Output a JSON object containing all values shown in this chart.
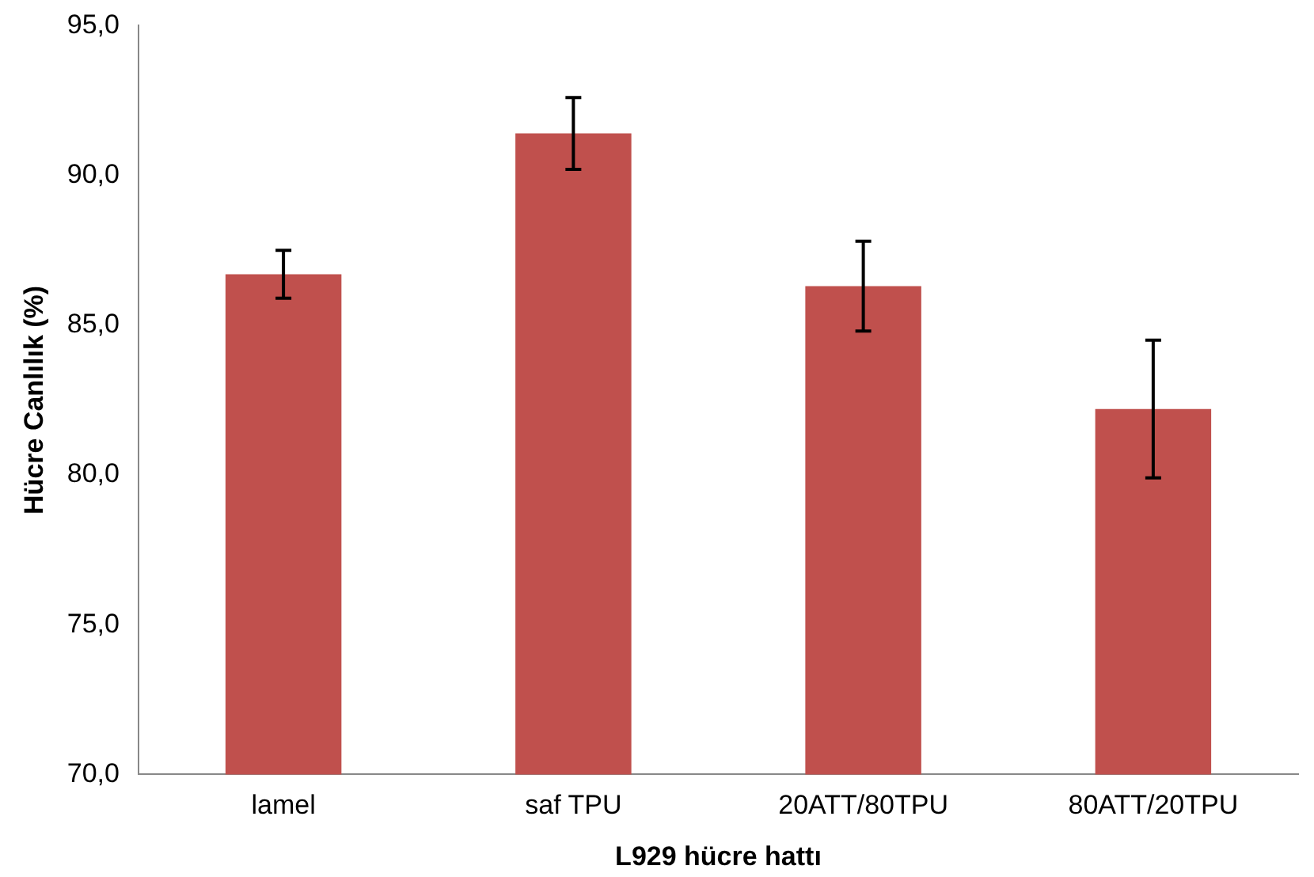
{
  "chart_data": {
    "type": "bar",
    "xlabel": "L929 hücre hattı",
    "ylabel": "Hücre Canlılık (%)",
    "categories": [
      "lamel",
      "saf TPU",
      "20ATT/80TPU",
      "80ATT/20TPU"
    ],
    "values": [
      86.7,
      91.4,
      86.3,
      82.2
    ],
    "errors": [
      0.8,
      1.2,
      1.5,
      2.3
    ],
    "color": "#c0504d",
    "ylim": [
      70,
      95
    ],
    "yticks": [
      {
        "value": 70,
        "label": "70,0"
      },
      {
        "value": 75,
        "label": "75,0"
      },
      {
        "value": 80,
        "label": "80,0"
      },
      {
        "value": 85,
        "label": "85,0"
      },
      {
        "value": 90,
        "label": "90,0"
      },
      {
        "value": 95,
        "label": "95,0"
      }
    ],
    "grid": false,
    "legend": false
  }
}
